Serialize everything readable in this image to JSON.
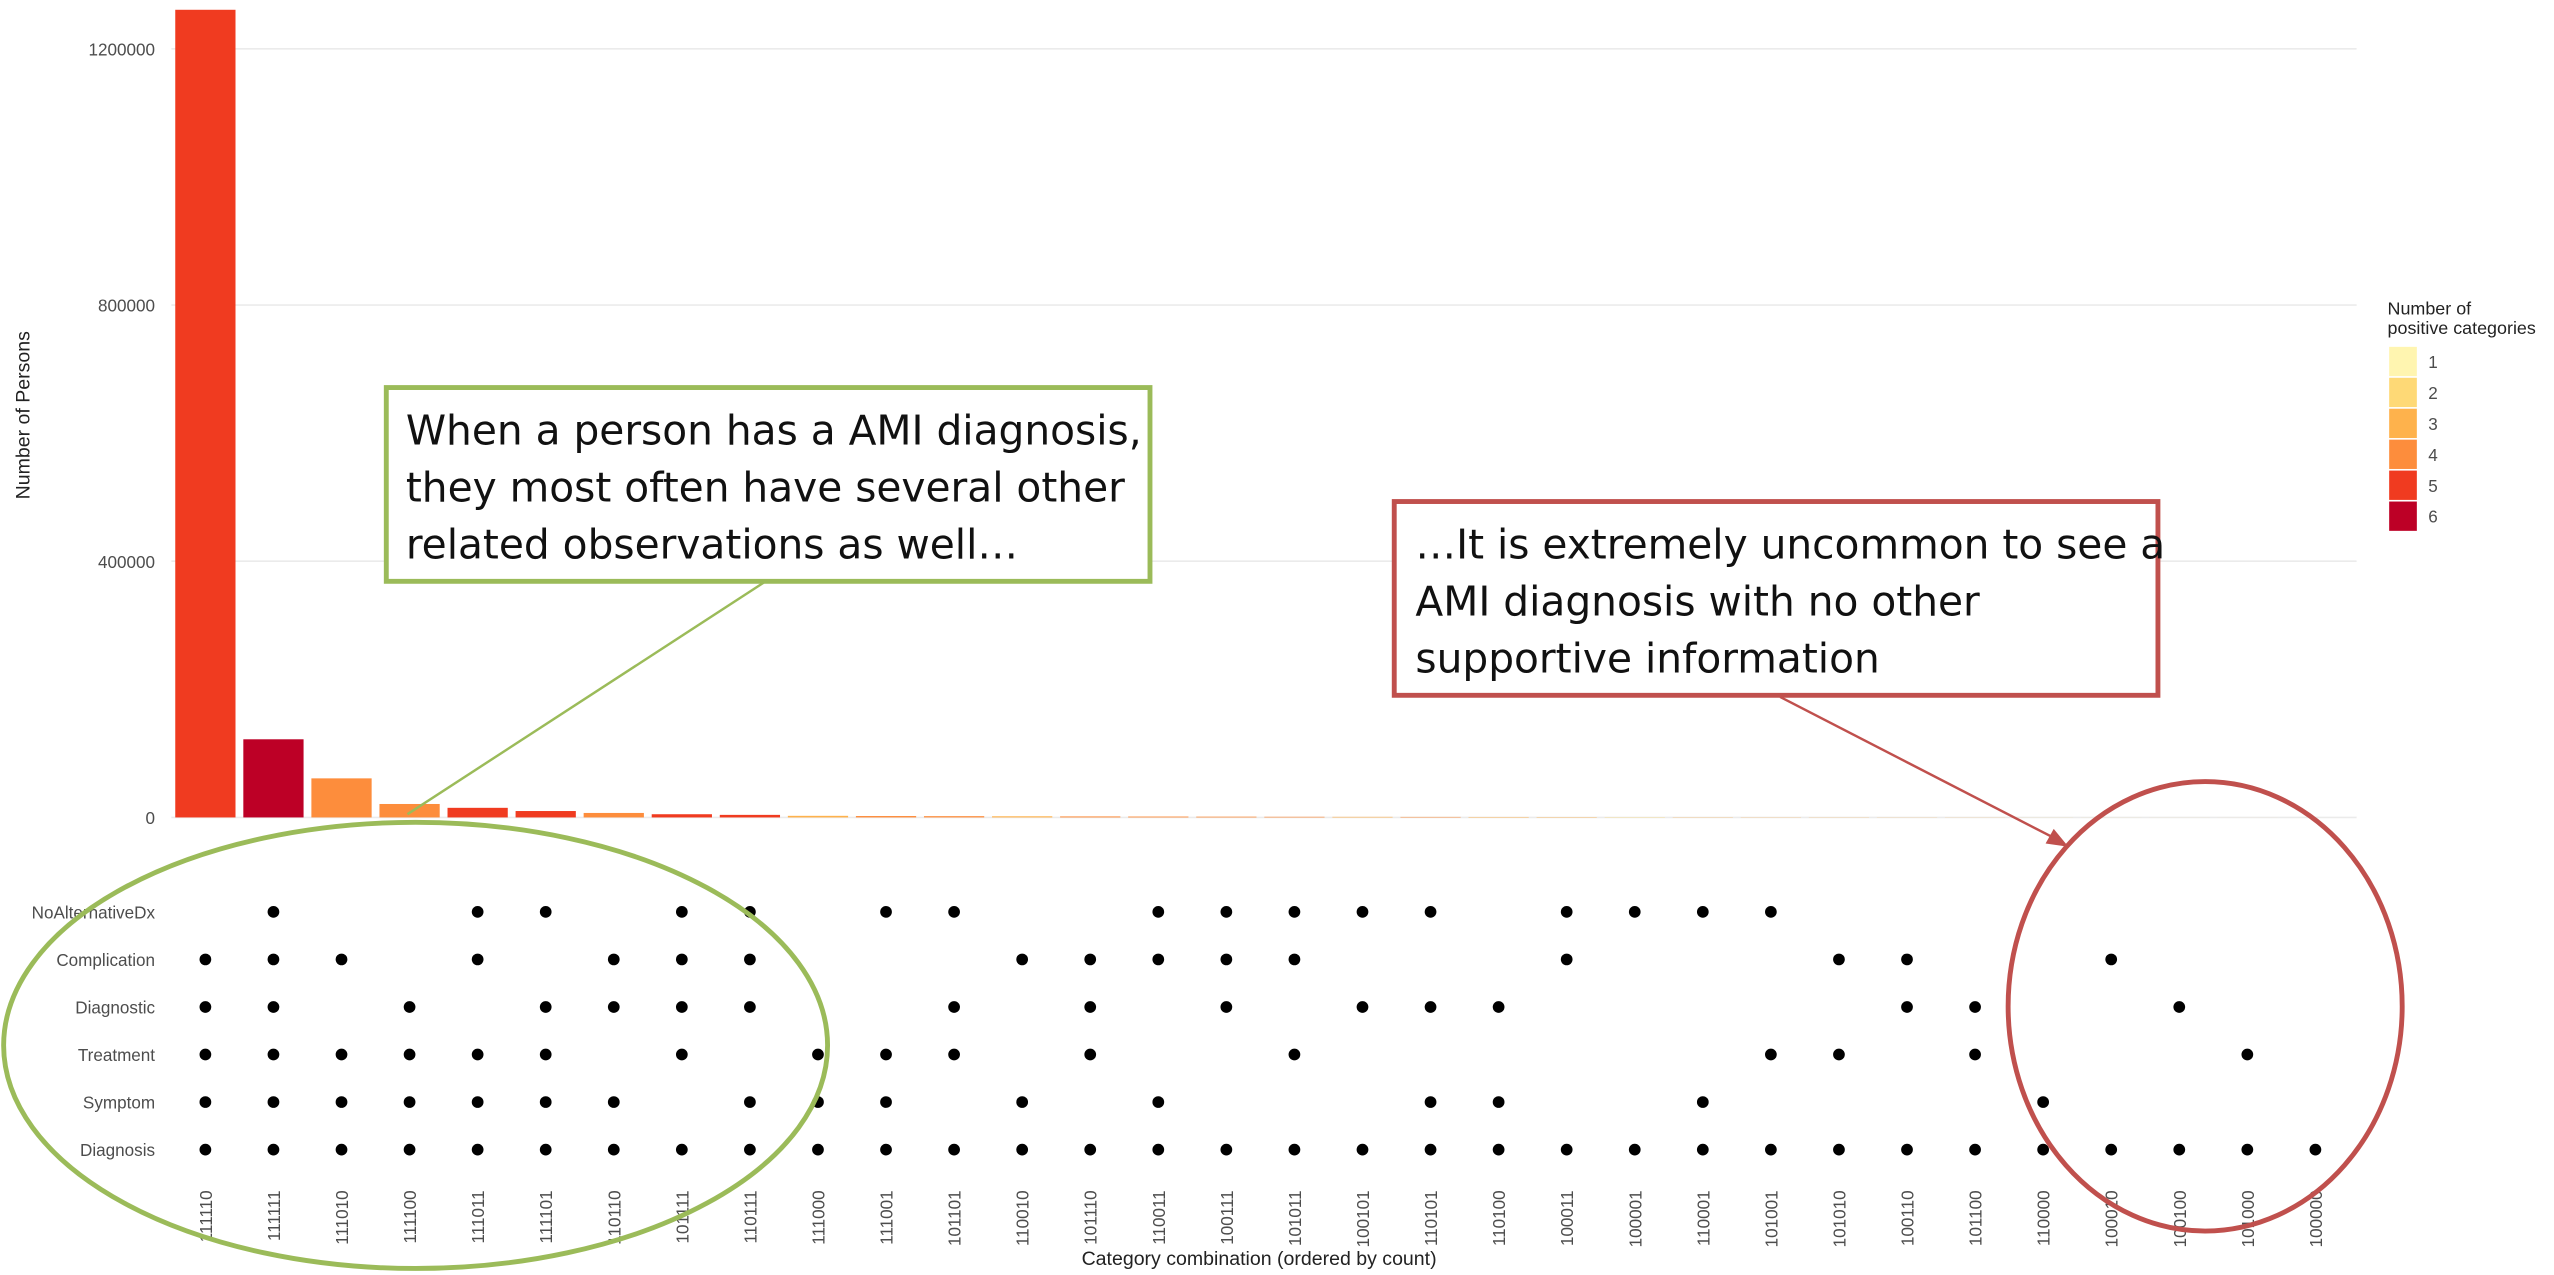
{
  "chart_data": {
    "type": "upset",
    "y_label": "Number of Persons",
    "x_label": "Category combination (ordered by count)",
    "categories": [
      "111110",
      "111111",
      "111010",
      "111100",
      "111011",
      "111101",
      "110110",
      "101111",
      "110111",
      "111000",
      "111001",
      "101101",
      "110010",
      "101110",
      "110011",
      "100111",
      "101011",
      "100101",
      "110101",
      "110100",
      "100011",
      "100001",
      "110001",
      "101001",
      "101010",
      "100110",
      "101100",
      "110000",
      "100010",
      "100100",
      "101000",
      "100000"
    ],
    "values": [
      1261000,
      122000,
      61000,
      21000,
      15000,
      10000,
      7000,
      5000,
      4000,
      2500,
      2200,
      2000,
      1800,
      1600,
      1400,
      1200,
      1000,
      900,
      800,
      700,
      600,
      500,
      400,
      350,
      300,
      250,
      200,
      150,
      100,
      80,
      50,
      30
    ],
    "sets": [
      "Diagnosis",
      "Symptom",
      "Treatment",
      "Diagnostic",
      "Complication",
      "NoAlternativeDx"
    ],
    "ylim": [
      0,
      1265000
    ],
    "yticks": [
      0,
      400000,
      800000,
      1200000
    ],
    "grid": true,
    "legend": {
      "title": [
        "Number of",
        "positive categories"
      ],
      "labels": [
        1,
        2,
        3,
        4,
        5,
        6
      ],
      "colors": [
        "#fff5b0",
        "#fed976",
        "#feb24c",
        "#fd8d3c",
        "#f03b20",
        "#bd0026"
      ]
    },
    "annotations": [
      {
        "lines": [
          "When a person has a AMI diagnosis,",
          "they most often have several other",
          "related observations as well…"
        ]
      },
      {
        "lines": [
          "…It is extremely uncommon to see a",
          "AMI diagnosis with no other",
          "supportive information"
        ]
      }
    ]
  }
}
